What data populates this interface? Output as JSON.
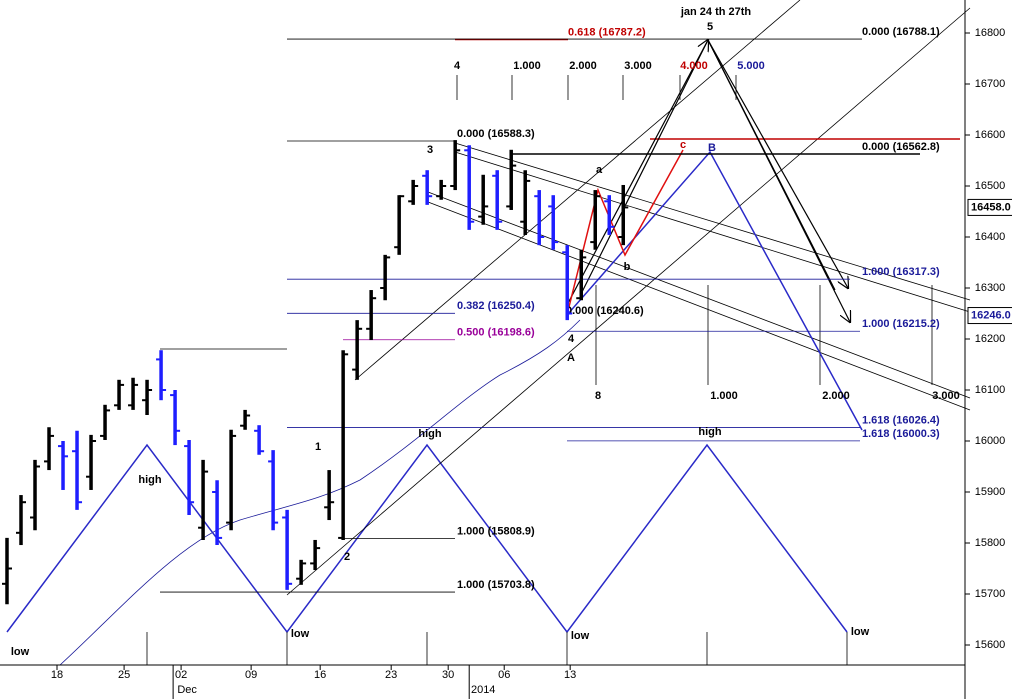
{
  "chart_data": {
    "type": "ohlc",
    "x": [
      0,
      1,
      2,
      3,
      4,
      5,
      6,
      7,
      8,
      9,
      10,
      11,
      12,
      13,
      14,
      15,
      16,
      17,
      18,
      19,
      20,
      21,
      22,
      23,
      24,
      25,
      26,
      27,
      28,
      29,
      30,
      31,
      32,
      33,
      34,
      35,
      36,
      37,
      38,
      39,
      40,
      41,
      42,
      43,
      44
    ],
    "open": [
      15720,
      15820,
      15850,
      15960,
      15990,
      15980,
      15930,
      16010,
      16070,
      16070,
      16080,
      16160,
      16090,
      15990,
      15830,
      15900,
      15840,
      16030,
      16020,
      15960,
      15850,
      15730,
      15760,
      15870,
      15810,
      16140,
      16220,
      16300,
      16380,
      16470,
      16520,
      16480,
      16500,
      16570,
      16440,
      16520,
      16460,
      16430,
      16480,
      16460,
      16370,
      16280,
      16390,
      16470,
      16400
    ],
    "high": [
      15810,
      15894,
      15963,
      16027,
      16000,
      16020,
      16012,
      16071,
      16120,
      16124,
      16120,
      16178,
      16100,
      16002,
      15963,
      15923,
      16022,
      16061,
      16031,
      15982,
      15865,
      15767,
      15806,
      15943,
      16178,
      16237,
      16296,
      16365,
      16482,
      16512,
      16531,
      16512,
      16590,
      16580,
      16522,
      16531,
      16571,
      16531,
      16492,
      16482,
      16384,
      16375,
      16492,
      16482,
      16502
    ],
    "low": [
      15680,
      15796,
      15825,
      15943,
      15904,
      15865,
      15904,
      16002,
      16061,
      16061,
      16051,
      16080,
      15992,
      15855,
      15806,
      15796,
      15825,
      16022,
      15973,
      15825,
      15708,
      15718,
      15747,
      15845,
      15806,
      16120,
      16198,
      16276,
      16365,
      16463,
      16463,
      16473,
      16492,
      16414,
      16424,
      16414,
      16453,
      16404,
      16384,
      16375,
      16237,
      16276,
      16375,
      16404,
      16384
    ],
    "close": [
      15750,
      15880,
      15950,
      16010,
      15970,
      15880,
      16000,
      16060,
      16110,
      16110,
      16100,
      16100,
      16020,
      15880,
      15940,
      15810,
      16010,
      16050,
      15980,
      15840,
      15720,
      15760,
      15790,
      15880,
      16170,
      16220,
      16280,
      16360,
      16480,
      16500,
      16480,
      16500,
      16570,
      16430,
      16460,
      16430,
      16540,
      16510,
      16400,
      16390,
      16250,
      16360,
      16480,
      16420,
      16458
    ],
    "up_color": "#000000",
    "down_color": "#1e1eff",
    "xlim": [
      -0.5,
      68.4
    ],
    "ylim": [
      15560.8,
      16864.7
    ],
    "yticks": [
      15600,
      15700,
      15800,
      15900,
      16000,
      16100,
      16200,
      16300,
      16400,
      16500,
      16600,
      16700,
      16800
    ],
    "xticks": [
      {
        "value": 3.57,
        "label": "18"
      },
      {
        "value": 8.36,
        "label": "25"
      },
      {
        "value": 12.43,
        "label": "02"
      },
      {
        "value": 17.43,
        "label": "09"
      },
      {
        "value": 22.36,
        "label": "16"
      },
      {
        "value": 27.43,
        "label": "23"
      },
      {
        "value": 31.5,
        "label": "30"
      },
      {
        "value": 35.5,
        "label": "06"
      },
      {
        "value": 40.21,
        "label": "13"
      }
    ],
    "period_labels": [
      {
        "value": 12.86,
        "label": "Dec"
      },
      {
        "value": 34.0,
        "label": "2014"
      }
    ],
    "levels": [
      {
        "value": 16787.2,
        "label": "0.618 (16787.2)",
        "color": "#c00000"
      },
      {
        "value": 16788.1,
        "label": "0.000 (16788.1)",
        "color": "#000000"
      },
      {
        "value": 16588.3,
        "label": "0.000 (16588.3)",
        "color": "#000000"
      },
      {
        "value": 16562.8,
        "label": "0.000 (16562.8)",
        "color": "#000000"
      },
      {
        "value": 16317.3,
        "label": "1.000 (16317.3)",
        "color": "#1a1a99"
      },
      {
        "value": 16250.4,
        "label": "0.382 (16250.4)",
        "color": "#1a1a99"
      },
      {
        "value": 16240.6,
        "label": "0.000 (16240.6)",
        "color": "#000000"
      },
      {
        "value": 16215.2,
        "label": "1.000 (16215.2)",
        "color": "#1a1a99"
      },
      {
        "value": 16198.6,
        "label": "0.500 (16198.6)",
        "color": "#990099"
      },
      {
        "value": 16026.4,
        "label": "1.618 (16026.4)",
        "color": "#1a1a99"
      },
      {
        "value": 16000.3,
        "label": "1.618 (16000.3)",
        "color": "#1a1a99"
      },
      {
        "value": 15808.9,
        "label": "1.000 (15808.9)",
        "color": "#000000"
      },
      {
        "value": 15703.8,
        "label": "1.000 (15703.8)",
        "color": "#000000"
      }
    ],
    "annotations": [
      {
        "text": "jan 24 th 27th",
        "color": "#000000"
      },
      {
        "text": "5",
        "color": "#000000"
      },
      {
        "text": "4",
        "color": "#000000"
      },
      {
        "text": "1.000",
        "color": "#000000"
      },
      {
        "text": "2.000",
        "color": "#000000"
      },
      {
        "text": "3.000",
        "color": "#000000"
      },
      {
        "text": "4.000",
        "color": "#c00000"
      },
      {
        "text": "5.000",
        "color": "#1a1a99"
      },
      {
        "text": "3",
        "color": "#000000"
      },
      {
        "text": "c",
        "color": "#c00000"
      },
      {
        "text": "B",
        "color": "#1a1a99"
      },
      {
        "text": "a",
        "color": "#000000"
      },
      {
        "text": "b",
        "color": "#000000"
      },
      {
        "text": "4",
        "color": "#000000"
      },
      {
        "text": "A",
        "color": "#000000"
      },
      {
        "text": "8",
        "color": "#000000"
      },
      {
        "text": "1.000",
        "color": "#000000"
      },
      {
        "text": "2.000",
        "color": "#000000"
      },
      {
        "text": "3.000",
        "color": "#000000"
      },
      {
        "text": "1",
        "color": "#000000"
      },
      {
        "text": "high",
        "color": "#000000"
      },
      {
        "text": "high",
        "color": "#000000"
      },
      {
        "text": "high",
        "color": "#000000"
      },
      {
        "text": "2",
        "color": "#000000"
      },
      {
        "text": "low",
        "color": "#000000"
      },
      {
        "text": "low",
        "color": "#000000"
      },
      {
        "text": "low",
        "color": "#000000"
      },
      {
        "text": "low",
        "color": "#000000"
      }
    ],
    "price_tags": [
      {
        "value": 16458,
        "label": "16458.0",
        "color": "#000000"
      },
      {
        "value": 16246,
        "label": "16246.0",
        "color": "#1a1a99"
      }
    ]
  }
}
